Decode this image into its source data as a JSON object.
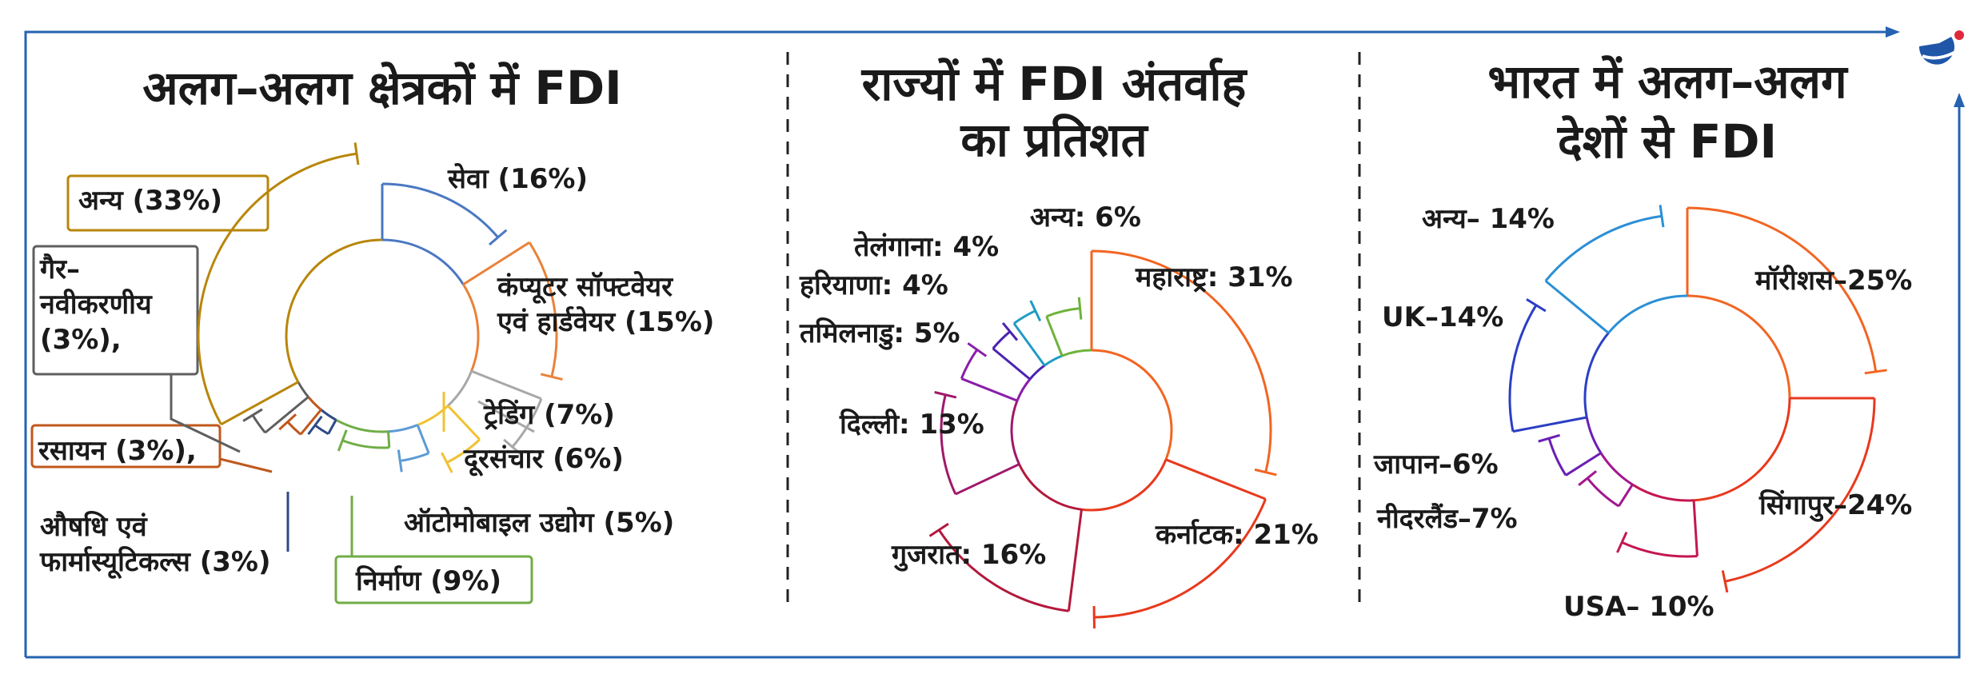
{
  "colors": {
    "frame": "#2563b0",
    "logo_blue": "#1f56a8",
    "logo_red": "#e0283c",
    "divider": "#222222"
  },
  "logo": {
    "name": "brand-logo-icon"
  },
  "chart_data": [
    {
      "type": "pie",
      "title": "अलग–अलग क्षेत्रकों में FDI",
      "slices": [
        {
          "label": "सेवा (16%)",
          "value": 16,
          "color": "#4a78c2"
        },
        {
          "label": "कंप्यूटर सॉफ्टवेयर",
          "label2": "एवं हार्डवेयर (15%)",
          "value": 15,
          "color": "#e9823a"
        },
        {
          "label": "ट्रेडिंग (7%)",
          "value": 7,
          "color": "#a8a8a8"
        },
        {
          "label": "दूरसंचार (6%)",
          "value": 6,
          "color": "#f1c232"
        },
        {
          "label": "ऑटोमोबाइल उद्योग (5%)",
          "value": 5,
          "color": "#5b9bd5"
        },
        {
          "label": "निर्माण (9%)",
          "value": 9,
          "color": "#70ad47"
        },
        {
          "label": "औषधि एवं",
          "label2": "फार्मास्यूटिकल्स (3%)",
          "value": 3,
          "color": "#2e4a87"
        },
        {
          "label": "रसायन (3%),",
          "value": 3,
          "color": "#c0581d"
        },
        {
          "label": "गैर–",
          "label2": "नवीकरणीय",
          "label3": "(3%),",
          "value": 3,
          "color": "#5f5f5f"
        },
        {
          "label": "अन्य (33%)",
          "value": 33,
          "color": "#b8860b"
        }
      ]
    },
    {
      "type": "pie",
      "title": "राज्यों में FDI अंतर्वाह",
      "title2": "का प्रतिशत",
      "slices": [
        {
          "label": "महाराष्ट्र: 31%",
          "value": 31,
          "color": "#f26522"
        },
        {
          "label": "कर्नाटक: 21%",
          "value": 21,
          "color": "#e8391d"
        },
        {
          "label": "गुजरात: 16%",
          "value": 16,
          "color": "#b3183c"
        },
        {
          "label": "दिल्ली: 13%",
          "value": 13,
          "color": "#a0186b"
        },
        {
          "label": "तमिलनाडु: 5%",
          "value": 5,
          "color": "#8a1ea8"
        },
        {
          "label": "हरियाणा: 4%",
          "value": 4,
          "color": "#4a23b0"
        },
        {
          "label": "तेलंगाना: 4%",
          "value": 4,
          "color": "#1f9bc4"
        },
        {
          "label": "अन्य: 6%",
          "value": 6,
          "color": "#6fb23a"
        }
      ]
    },
    {
      "type": "pie",
      "title": "भारत में अलग–अलग",
      "title2": "देशों से FDI",
      "slices": [
        {
          "label": "मॉरीशस–25%",
          "value": 25,
          "color": "#f26522"
        },
        {
          "label": "सिंगापुर–24%",
          "value": 24,
          "color": "#e8391d"
        },
        {
          "label": "USA– 10%",
          "value": 10,
          "color": "#c4174f"
        },
        {
          "label": "नीदरलैंड–7%",
          "value": 7,
          "color": "#a3168f"
        },
        {
          "label": "जापान–6%",
          "value": 6,
          "color": "#6b1fb3"
        },
        {
          "label": "UK–14%",
          "value": 14,
          "color": "#2b3fc4"
        },
        {
          "label": "अन्य– 14%",
          "value": 14,
          "color": "#2b8fd6"
        }
      ]
    }
  ]
}
